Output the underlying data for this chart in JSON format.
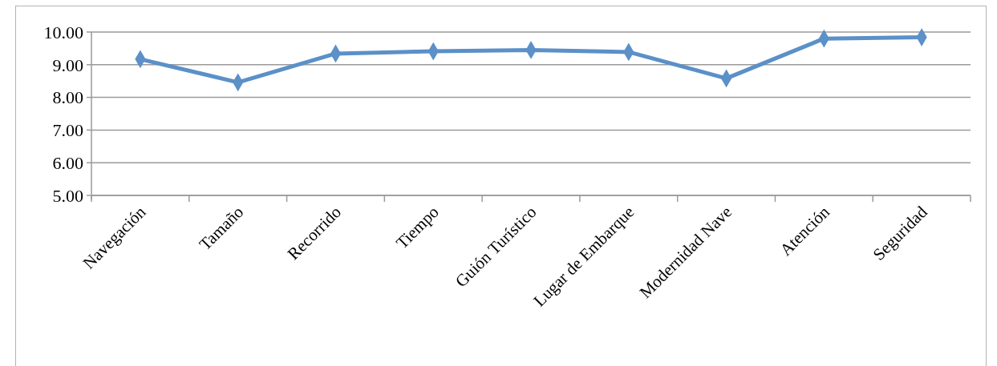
{
  "chart_data": {
    "type": "line",
    "categories": [
      "Navegación",
      "Tamaño",
      "Recorrido",
      "Tiempo",
      "Guión Turístico",
      "Lugar de Embarque",
      "Modernidad Nave",
      "Atención",
      "Seguridad"
    ],
    "series": [
      {
        "color": "#5b90c8",
        "values": [
          9.17,
          8.46,
          9.34,
          9.41,
          9.45,
          9.39,
          8.58,
          9.8,
          9.84
        ]
      }
    ],
    "ylim": [
      5,
      10
    ],
    "yticks": [
      {
        "value": 5,
        "label": "5.00"
      },
      {
        "value": 6,
        "label": "6.00"
      },
      {
        "value": 7,
        "label": "7.00"
      },
      {
        "value": 8,
        "label": "8.00"
      },
      {
        "value": 9,
        "label": "9.00"
      },
      {
        "value": 10,
        "label": "10.00"
      }
    ],
    "grid": "y",
    "marker": "diamond",
    "line_style": "solid"
  }
}
